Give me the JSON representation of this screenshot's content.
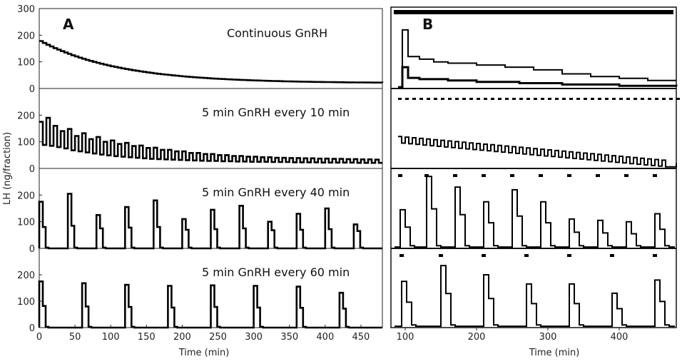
{
  "panel_letters": {
    "a": "A",
    "b": "B"
  },
  "axes": {
    "ylabel": "LH (ng/fraction)",
    "xlabel_a": "Time (min)",
    "xlabel_b": "Time (min)",
    "y_ticks": [
      "0",
      "100",
      "200",
      "300"
    ],
    "x_ticks_a": [
      "0",
      "50",
      "100",
      "150",
      "200",
      "250",
      "300",
      "350",
      "400",
      "450"
    ],
    "x_ticks_b": [
      "100",
      "200",
      "300",
      "400"
    ]
  },
  "chart_data": [
    {
      "type": "line",
      "panel": "A1",
      "title": "Continuous GnRH",
      "xlim": [
        0,
        480
      ],
      "ylim": [
        0,
        300
      ],
      "shape": "continuous",
      "peak": 178,
      "baseline": 20,
      "decay_tau_min": 110
    },
    {
      "type": "line",
      "panel": "A2",
      "title": "5 min GnRH every 10 min",
      "xlim": [
        0,
        480
      ],
      "ylim": [
        0,
        300
      ],
      "shape": "pulses",
      "period_min": 10,
      "start": [
        0,
        10,
        20,
        30,
        40,
        50,
        60,
        70,
        80
      ],
      "pulse_peaks": [
        175,
        190,
        160,
        140,
        148,
        122,
        132,
        110,
        118,
        100,
        105,
        92,
        96,
        84,
        86,
        77,
        78,
        70,
        70,
        64,
        64,
        58,
        58,
        54,
        54,
        50,
        50,
        47,
        47,
        44,
        44,
        42,
        42,
        40,
        40,
        39,
        39,
        38,
        38,
        37,
        37,
        36,
        36,
        35,
        35,
        34,
        34,
        33
      ],
      "pulse_troughs": [
        88,
        85,
        80,
        75,
        68,
        64,
        60,
        56,
        52,
        49,
        46,
        44,
        42,
        40,
        38,
        36,
        35,
        34,
        33,
        32,
        31,
        30,
        29,
        28,
        28,
        27,
        27,
        26,
        26,
        25,
        25,
        25,
        24,
        24,
        24,
        23,
        23,
        23,
        23,
        22,
        22,
        22,
        22,
        22,
        21,
        21,
        21,
        21
      ]
    },
    {
      "type": "line",
      "panel": "A3",
      "title": "5 min GnRH every 40 min",
      "xlim": [
        0,
        480
      ],
      "ylim": [
        0,
        300
      ],
      "shape": "pulses",
      "pulse_times": [
        0,
        40,
        80,
        120,
        160,
        200,
        240,
        280,
        320,
        360,
        400,
        440
      ],
      "pulse_peaks": [
        175,
        205,
        125,
        155,
        180,
        110,
        145,
        160,
        100,
        130,
        150,
        90
      ],
      "pulse_troughs": [
        80,
        85,
        75,
        78,
        80,
        70,
        72,
        75,
        68,
        70,
        72,
        65
      ]
    },
    {
      "type": "line",
      "panel": "A4",
      "title": "5 min GnRH every 60 min",
      "xlim": [
        0,
        480
      ],
      "ylim": [
        0,
        300
      ],
      "shape": "pulses",
      "pulse_times": [
        0,
        60,
        120,
        180,
        240,
        300,
        360,
        420
      ],
      "pulse_peaks": [
        175,
        168,
        162,
        158,
        160,
        158,
        155,
        132
      ],
      "pulse_troughs": [
        82,
        80,
        78,
        76,
        78,
        76,
        75,
        72
      ]
    }
  ]
}
